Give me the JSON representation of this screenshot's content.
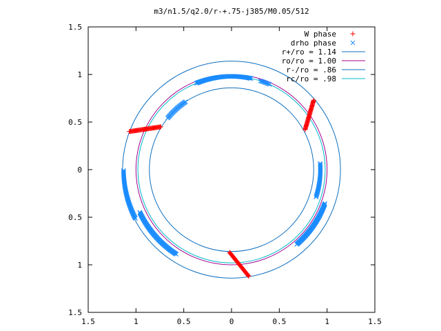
{
  "chart_data": {
    "type": "scatter",
    "title": "m3/n1.5/q2.0/r-+.75-j385/M0.05/512",
    "xlabel": "",
    "ylabel": "",
    "xlim": [
      -1.5,
      1.5
    ],
    "ylim": [
      -1.5,
      1.5
    ],
    "x_ticks": [
      "1.5",
      "1",
      "0.5",
      "0",
      "0.5",
      "1",
      "1.5"
    ],
    "y_ticks": [
      "1.5",
      "1",
      "0.5",
      "0",
      "0.5",
      "1",
      "1.5"
    ],
    "grid": false,
    "legend_position": "top-right",
    "circles": [
      {
        "name": "r+/ro = 1.14",
        "radius": 1.14,
        "color": "#0b6ebf"
      },
      {
        "name": "ro/ro = 1.00",
        "radius": 1.0,
        "color": "#a00090"
      },
      {
        "name": "r-/ro = .86",
        "radius": 0.86,
        "color": "#0b6ebf"
      },
      {
        "name": "rc/ro = .98",
        "radius": 0.98,
        "color": "#00b8c8"
      }
    ],
    "series": [
      {
        "name": "W phase",
        "marker": "plus",
        "color": "#ff0000",
        "segments": [
          {
            "from": [
              0.77,
              0.42
            ],
            "to": [
              0.86,
              0.73
            ],
            "n": 40
          },
          {
            "from": [
              -1.07,
              0.4
            ],
            "to": [
              -0.74,
              0.45
            ],
            "n": 45
          },
          {
            "from": [
              -0.02,
              -0.87
            ],
            "to": [
              0.18,
              -1.12
            ],
            "n": 38
          }
        ]
      },
      {
        "name": "drho phase",
        "marker": "cross",
        "color": "#1a8cff",
        "arcs": [
          {
            "radius": 0.98,
            "start_deg": 112,
            "end_deg": 78,
            "n": 90
          },
          {
            "radius": 0.98,
            "start_deg": 66,
            "end_deg": 72,
            "n": 10
          },
          {
            "radius": 0.86,
            "start_deg": 124,
            "end_deg": 141,
            "n": 30
          },
          {
            "radius": 0.93,
            "start_deg": 4,
            "end_deg": -18,
            "n": 40
          },
          {
            "radius": 1.04,
            "start_deg": -20,
            "end_deg": -49,
            "n": 90
          },
          {
            "radius": 1.13,
            "start_deg": 180.5,
            "end_deg": 207,
            "n": 70
          },
          {
            "radius": 1.06,
            "start_deg": 205,
            "end_deg": 237,
            "n": 90
          }
        ]
      }
    ]
  }
}
